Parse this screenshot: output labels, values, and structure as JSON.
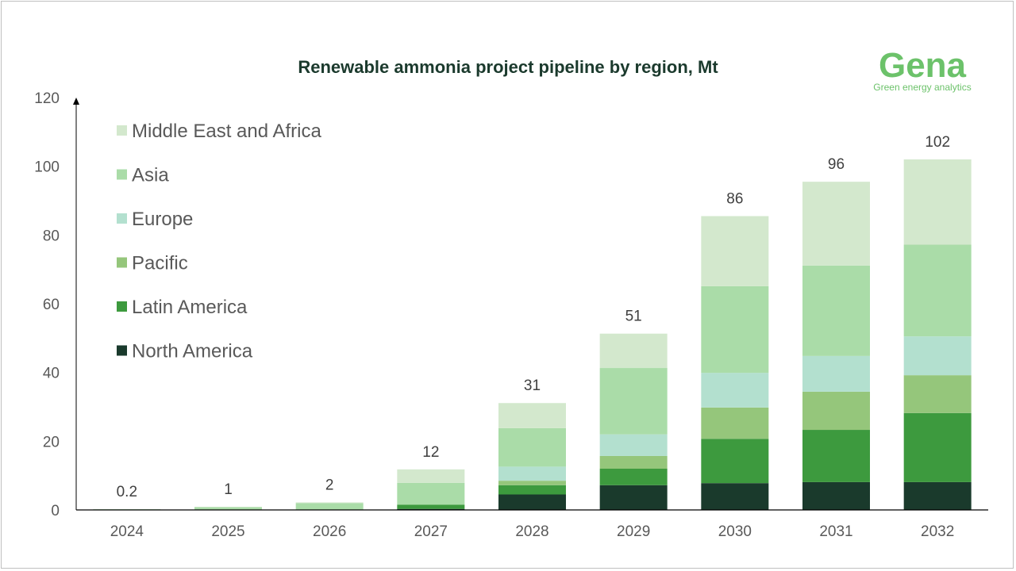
{
  "chart_data": {
    "type": "bar",
    "stacked": true,
    "title": "Renewable ammonia project pipeline by region, Mt",
    "xlabel": "",
    "ylabel": "",
    "ylim": [
      0,
      120
    ],
    "yticks": [
      0,
      20,
      40,
      60,
      80,
      100,
      120
    ],
    "grid": false,
    "legend_position": "top-left",
    "categories": [
      "2024",
      "2025",
      "2026",
      "2027",
      "2028",
      "2029",
      "2030",
      "2031",
      "2032"
    ],
    "totals_labels": [
      "0.2",
      "1",
      "2",
      "12",
      "31",
      "51",
      "86",
      "96",
      "102"
    ],
    "series": [
      {
        "name": "North America",
        "color": "#1a3a2c",
        "values": [
          0,
          0,
          0,
          0.3,
          4.5,
          7.2,
          7.8,
          8.1,
          8.1
        ]
      },
      {
        "name": "Latin America",
        "color": "#3d9a3e",
        "values": [
          0,
          0,
          0,
          1.2,
          2.7,
          4.8,
          12.9,
          15.2,
          20.1
        ]
      },
      {
        "name": "Pacific",
        "color": "#95c67b",
        "values": [
          0,
          0,
          0,
          0,
          1.3,
          3.7,
          9.1,
          11.1,
          11.0
        ]
      },
      {
        "name": "Europe",
        "color": "#b3e0cf",
        "values": [
          0,
          0,
          0,
          0,
          4.1,
          6.3,
          10.1,
          10.4,
          11.3
        ]
      },
      {
        "name": "Asia",
        "color": "#aadca8",
        "values": [
          0.2,
          0.8,
          2.0,
          6.4,
          11.2,
          19.3,
          25.2,
          26.3,
          26.7
        ]
      },
      {
        "name": "Middle East and Africa",
        "color": "#d3e8cd",
        "values": [
          0,
          0.1,
          0.2,
          3.9,
          7.3,
          10.0,
          20.4,
          24.4,
          24.8
        ]
      }
    ]
  },
  "logo": {
    "name": "Gena",
    "tagline": "Green energy analytics"
  }
}
